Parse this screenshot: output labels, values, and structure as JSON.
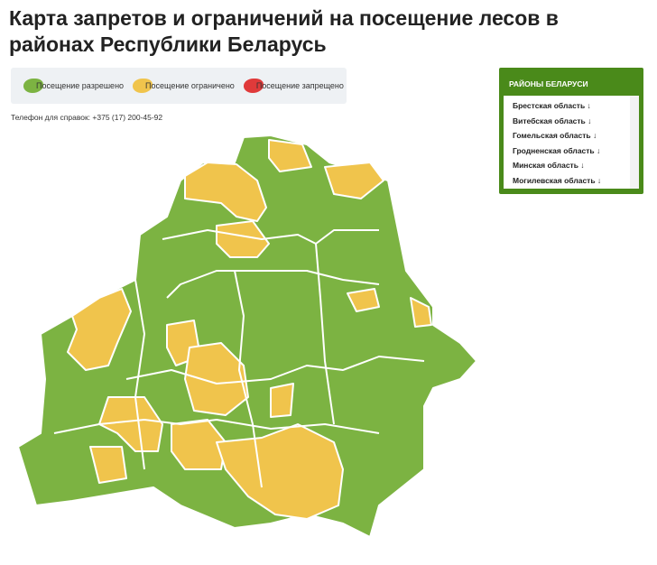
{
  "header": {
    "title": "Карта запретов и ограничений на посещение лесов в районах Республики Беларусь"
  },
  "legend": {
    "items": [
      "Посещение разрешено",
      "Посещение ограничено",
      "Посещение запрещено"
    ]
  },
  "phone": "Телефон для справок: +375 (17) 200-45-92",
  "sidebar": {
    "title": "РАЙОНЫ БЕЛАРУСИ",
    "items": [
      "Брестская область ↓",
      "Витебская область ↓",
      "Гомельская область ↓",
      "Гродненская область ↓",
      "Минская область ↓",
      "Могилевская область ↓"
    ]
  }
}
